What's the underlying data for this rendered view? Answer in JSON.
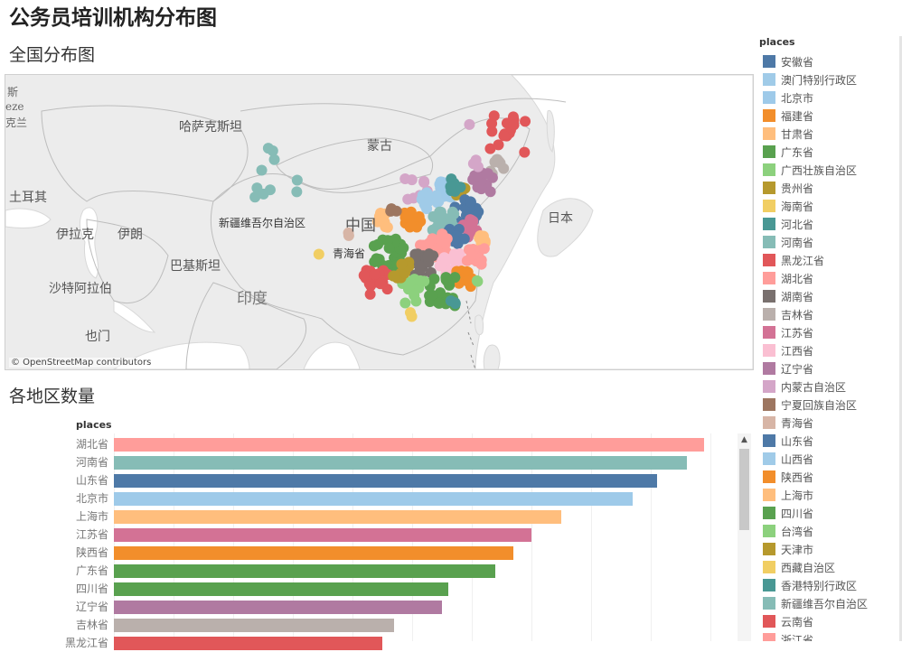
{
  "title": "公务员培训机构分布图",
  "map_section": {
    "title": "全国分布图",
    "attribution": "© OpenStreetMap contributors",
    "labels": {
      "new_delhi_partial": "斯",
      "kazakhstan": "哈萨克斯坦",
      "mongolia": "蒙古",
      "xinjiang": "新疆维吾尔自治区",
      "china": "中国",
      "qinghai": "青海省",
      "japan": "日本",
      "turkey": "土耳其",
      "iraq": "伊拉克",
      "iran": "伊朗",
      "pakistan": "巴基斯坦",
      "india": "印度",
      "saudi": "沙特阿拉伯",
      "oman": "也门",
      "lan": "克兰",
      "geo": "eze"
    }
  },
  "bar_section": {
    "title": "各地区数量",
    "header": "places"
  },
  "legend": {
    "title": "places",
    "items": [
      {
        "label": "安徽省",
        "color": "#4e79a7"
      },
      {
        "label": "澳门特别行政区",
        "color": "#a0cbe8"
      },
      {
        "label": "北京市",
        "color": "#9ecae9"
      },
      {
        "label": "福建省",
        "color": "#f28e2b"
      },
      {
        "label": "甘肃省",
        "color": "#ffbe7d"
      },
      {
        "label": "广东省",
        "color": "#59a14f"
      },
      {
        "label": "广西壮族自治区",
        "color": "#8cd17d"
      },
      {
        "label": "贵州省",
        "color": "#b6992d"
      },
      {
        "label": "海南省",
        "color": "#f1ce63"
      },
      {
        "label": "河北省",
        "color": "#499894"
      },
      {
        "label": "河南省",
        "color": "#86bcb6"
      },
      {
        "label": "黑龙江省",
        "color": "#e15759"
      },
      {
        "label": "湖北省",
        "color": "#ff9d9a"
      },
      {
        "label": "湖南省",
        "color": "#79706e"
      },
      {
        "label": "吉林省",
        "color": "#bab0ac"
      },
      {
        "label": "江苏省",
        "color": "#d37295"
      },
      {
        "label": "江西省",
        "color": "#fabfd2"
      },
      {
        "label": "辽宁省",
        "color": "#b07aa1"
      },
      {
        "label": "内蒙古自治区",
        "color": "#d4a6c8"
      },
      {
        "label": "宁夏回族自治区",
        "color": "#9d7660"
      },
      {
        "label": "青海省",
        "color": "#d7b5a6"
      },
      {
        "label": "山东省",
        "color": "#4e79a7"
      },
      {
        "label": "山西省",
        "color": "#a0cbe8"
      },
      {
        "label": "陕西省",
        "color": "#f28e2b"
      },
      {
        "label": "上海市",
        "color": "#ffbe7d"
      },
      {
        "label": "四川省",
        "color": "#59a14f"
      },
      {
        "label": "台湾省",
        "color": "#8cd17d"
      },
      {
        "label": "天津市",
        "color": "#b6992d"
      },
      {
        "label": "西藏自治区",
        "color": "#f1ce63"
      },
      {
        "label": "香港特别行政区",
        "color": "#499894"
      },
      {
        "label": "新疆维吾尔自治区",
        "color": "#86bcb6"
      },
      {
        "label": "云南省",
        "color": "#e15759"
      },
      {
        "label": "浙江省",
        "color": "#ff9d9a"
      }
    ]
  },
  "chart_data": {
    "type": "bar",
    "title": "各地区数量",
    "xlabel": "",
    "ylabel": "places",
    "xlim": [
      0,
      100
    ],
    "orientation": "horizontal",
    "categories": [
      "湖北省",
      "河南省",
      "山东省",
      "北京市",
      "上海市",
      "江苏省",
      "陕西省",
      "广东省",
      "四川省",
      "辽宁省",
      "吉林省",
      "黑龙江省"
    ],
    "values": [
      99,
      96,
      91,
      87,
      75,
      70,
      67,
      64,
      56,
      55,
      47,
      45
    ],
    "colors": [
      "#ff9d9a",
      "#86bcb6",
      "#4e79a7",
      "#9ecae9",
      "#ffbe7d",
      "#d37295",
      "#f28e2b",
      "#59a14f",
      "#59a14f",
      "#b07aa1",
      "#bab0ac",
      "#e15759"
    ]
  }
}
